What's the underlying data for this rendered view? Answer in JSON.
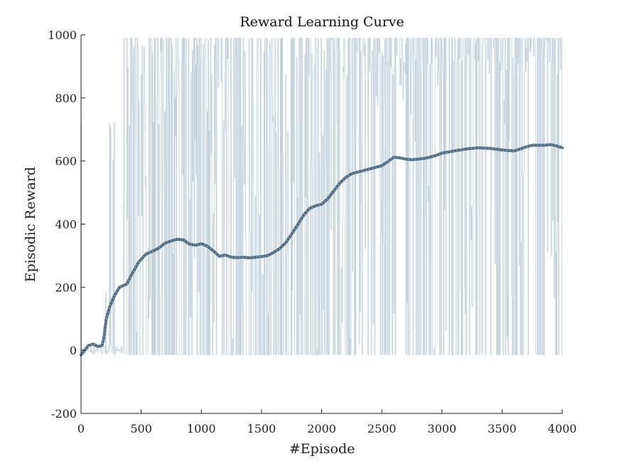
{
  "chart_data": {
    "type": "line",
    "title": "Reward Learning Curve",
    "xlabel": "#Episode",
    "ylabel": "Episodic Reward",
    "xlim": [
      0,
      4000
    ],
    "ylim": [
      -200,
      1000
    ],
    "xticks": [
      "0",
      "500",
      "1000",
      "1500",
      "2000",
      "2500",
      "3000",
      "3500",
      "4000"
    ],
    "yticks": [
      "-200",
      "0",
      "200",
      "400",
      "600",
      "800",
      "1000"
    ],
    "grid": false,
    "raw_color": "#bccbd6",
    "smooth_color": "#4a6a85",
    "raw_range": [
      -15,
      990
    ],
    "smoothed": {
      "x": [
        0,
        30,
        60,
        100,
        140,
        175,
        190,
        210,
        240,
        280,
        320,
        380,
        420,
        480,
        540,
        600,
        650,
        700,
        760,
        800,
        850,
        900,
        950,
        1000,
        1050,
        1100,
        1150,
        1200,
        1250,
        1300,
        1350,
        1400,
        1450,
        1500,
        1550,
        1600,
        1650,
        1700,
        1750,
        1800,
        1850,
        1900,
        1950,
        2000,
        2050,
        2100,
        2150,
        2200,
        2250,
        2300,
        2350,
        2400,
        2450,
        2500,
        2550,
        2600,
        2650,
        2700,
        2750,
        2800,
        2850,
        2900,
        2950,
        3000,
        3100,
        3200,
        3300,
        3400,
        3500,
        3600,
        3650,
        3700,
        3750,
        3800,
        3850,
        3900,
        3950,
        4000
      ],
      "y": [
        -15,
        0,
        15,
        20,
        12,
        15,
        40,
        100,
        140,
        175,
        200,
        210,
        240,
        280,
        305,
        315,
        325,
        340,
        348,
        352,
        350,
        337,
        333,
        338,
        330,
        315,
        298,
        302,
        295,
        294,
        295,
        293,
        295,
        297,
        300,
        310,
        322,
        340,
        368,
        398,
        428,
        450,
        458,
        463,
        480,
        505,
        530,
        548,
        560,
        565,
        570,
        575,
        580,
        585,
        598,
        612,
        610,
        606,
        604,
        606,
        608,
        612,
        618,
        625,
        632,
        638,
        642,
        640,
        635,
        632,
        638,
        645,
        650,
        650,
        650,
        652,
        648,
        642
      ]
    }
  }
}
